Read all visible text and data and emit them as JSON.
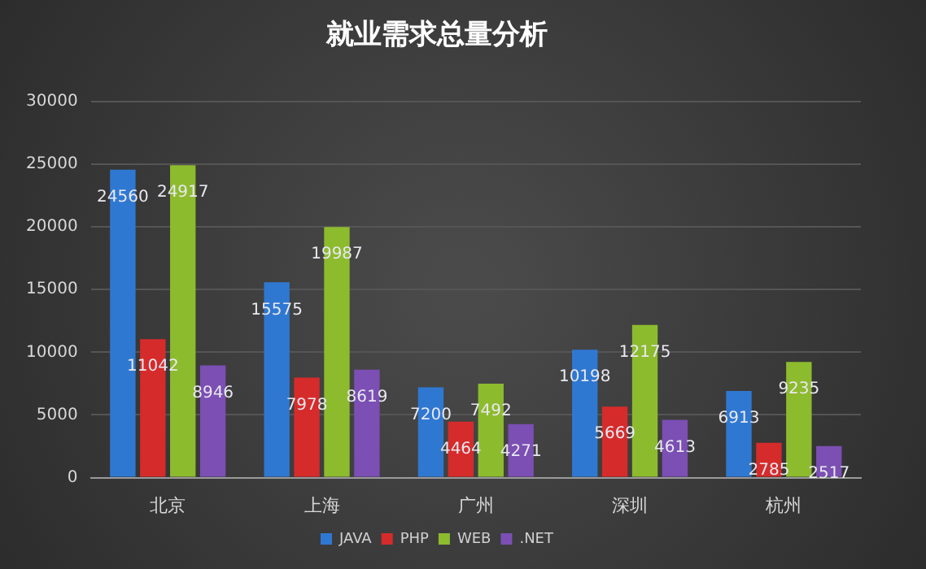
{
  "chart_data": {
    "type": "bar",
    "title": "就业需求总量分析",
    "categories": [
      "北京",
      "上海",
      "广州",
      "深圳",
      "杭州"
    ],
    "series": [
      {
        "name": "JAVA",
        "color": "#2f78d2",
        "values": [
          24560,
          15575,
          7200,
          10198,
          6913
        ]
      },
      {
        "name": "PHP",
        "color": "#d62b2b",
        "values": [
          11042,
          7978,
          4464,
          5669,
          2785
        ]
      },
      {
        "name": "WEB",
        "color": "#8dbb2e",
        "values": [
          24917,
          19987,
          7492,
          12175,
          9235
        ]
      },
      {
        "name": ".NET",
        "color": "#7b4fb3",
        "values": [
          8946,
          8619,
          4271,
          4613,
          2517
        ]
      }
    ],
    "ylim": [
      0,
      30000
    ],
    "yticks": [
      0,
      5000,
      10000,
      15000,
      20000,
      25000,
      30000
    ],
    "grid": "y",
    "legend": "bottom",
    "data_labels": true
  }
}
